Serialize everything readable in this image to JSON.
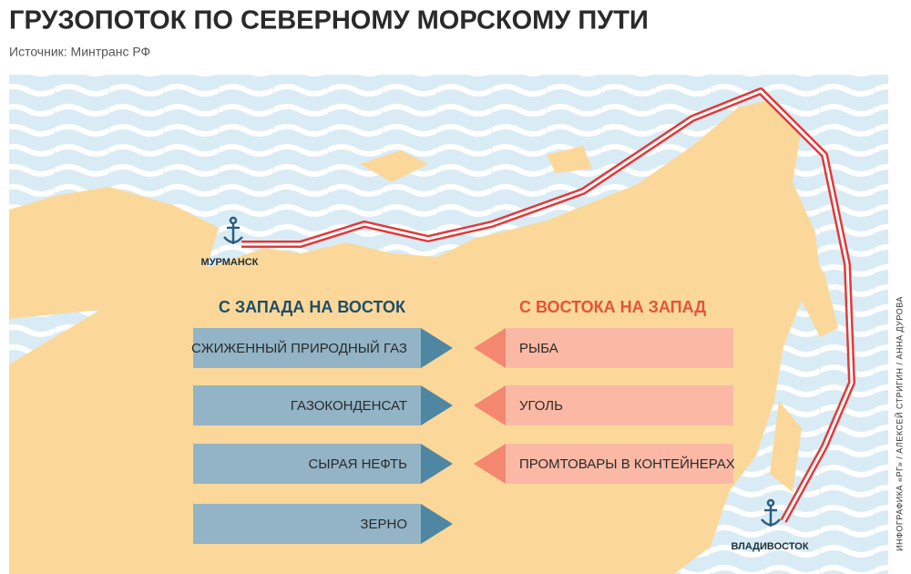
{
  "header": {
    "title": "ГРУЗОПОТОК ПО СЕВЕРНОМУ МОРСКОМУ ПУТИ",
    "source": "Источник: Минтранс РФ"
  },
  "ports": [
    {
      "label": "МУРМАНСК"
    },
    {
      "label": "ВЛАДИВОСТОК"
    }
  ],
  "west_to_east": {
    "heading": "С ЗАПАДА НА ВОСТОК",
    "items": [
      "СЖИЖЕННЫЙ ПРИРОДНЫЙ ГАЗ",
      "ГАЗОКОНДЕНСАТ",
      "СЫРАЯ НЕФТЬ",
      "ЗЕРНО"
    ]
  },
  "east_to_west": {
    "heading": "С ВОСТОКА НА ЗАПАД",
    "items": [
      "РЫБА",
      "УГОЛЬ",
      "ПРОМТОВАРЫ В КОНТЕЙНЕРАХ"
    ]
  },
  "credit": "ИНФОГРАФИКА «РГ» / АЛЕКСЕЙ СТРИГИН / АННА ДУРОВА"
}
